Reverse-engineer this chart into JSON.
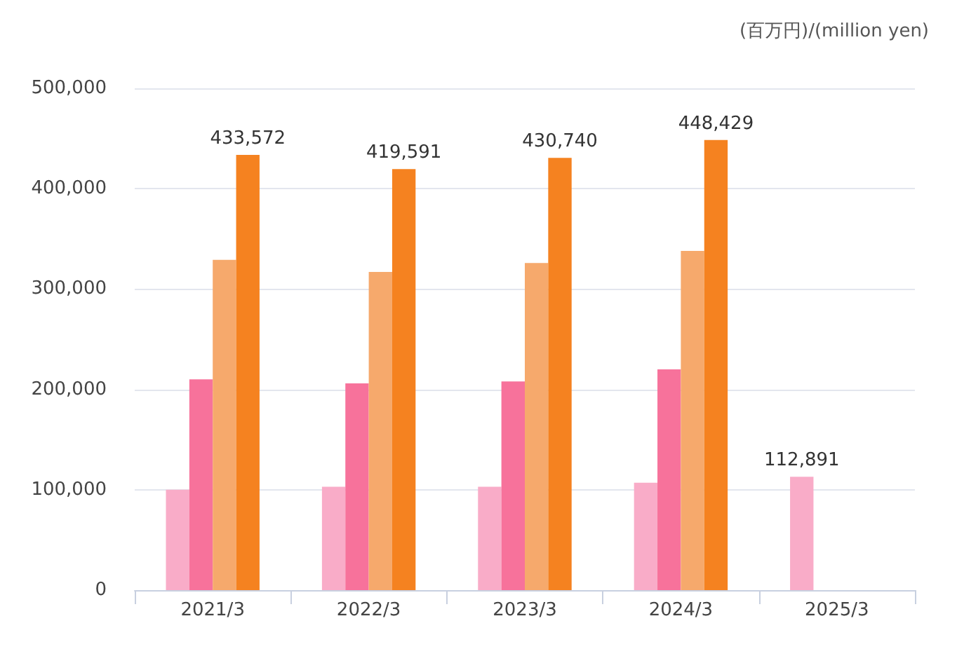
{
  "chart_data": {
    "type": "bar",
    "categories": [
      "2021/3",
      "2022/3",
      "2023/3",
      "2024/3",
      "2025/3"
    ],
    "series": [
      {
        "color": "#f9acc8",
        "values": [
          100000,
          103000,
          103000,
          107000,
          112891
        ],
        "value_labels": [
          null,
          null,
          null,
          null,
          "112,891"
        ]
      },
      {
        "color": "#f7729b",
        "values": [
          210000,
          206000,
          208000,
          220000,
          null
        ]
      },
      {
        "color": "#f6a96c",
        "values": [
          329000,
          317000,
          326000,
          338000,
          null
        ]
      },
      {
        "color": "#f58220",
        "values": [
          433572,
          419591,
          430740,
          448429,
          null
        ],
        "value_labels": [
          "433,572",
          "419,591",
          "430,740",
          "448,429",
          null
        ]
      }
    ],
    "ylim": [
      0,
      500000
    ],
    "yticks": [
      0,
      {
        "value": 100000,
        "label": "100,000"
      },
      {
        "value": 200000,
        "label": "200,000"
      },
      {
        "value": 300000,
        "label": "300,000"
      },
      {
        "value": 400000,
        "label": "400,000"
      },
      {
        "value": 500000,
        "label": "500,000"
      }
    ],
    "grid": "y",
    "annotations": [
      "(百万円)/(million yen)"
    ]
  }
}
